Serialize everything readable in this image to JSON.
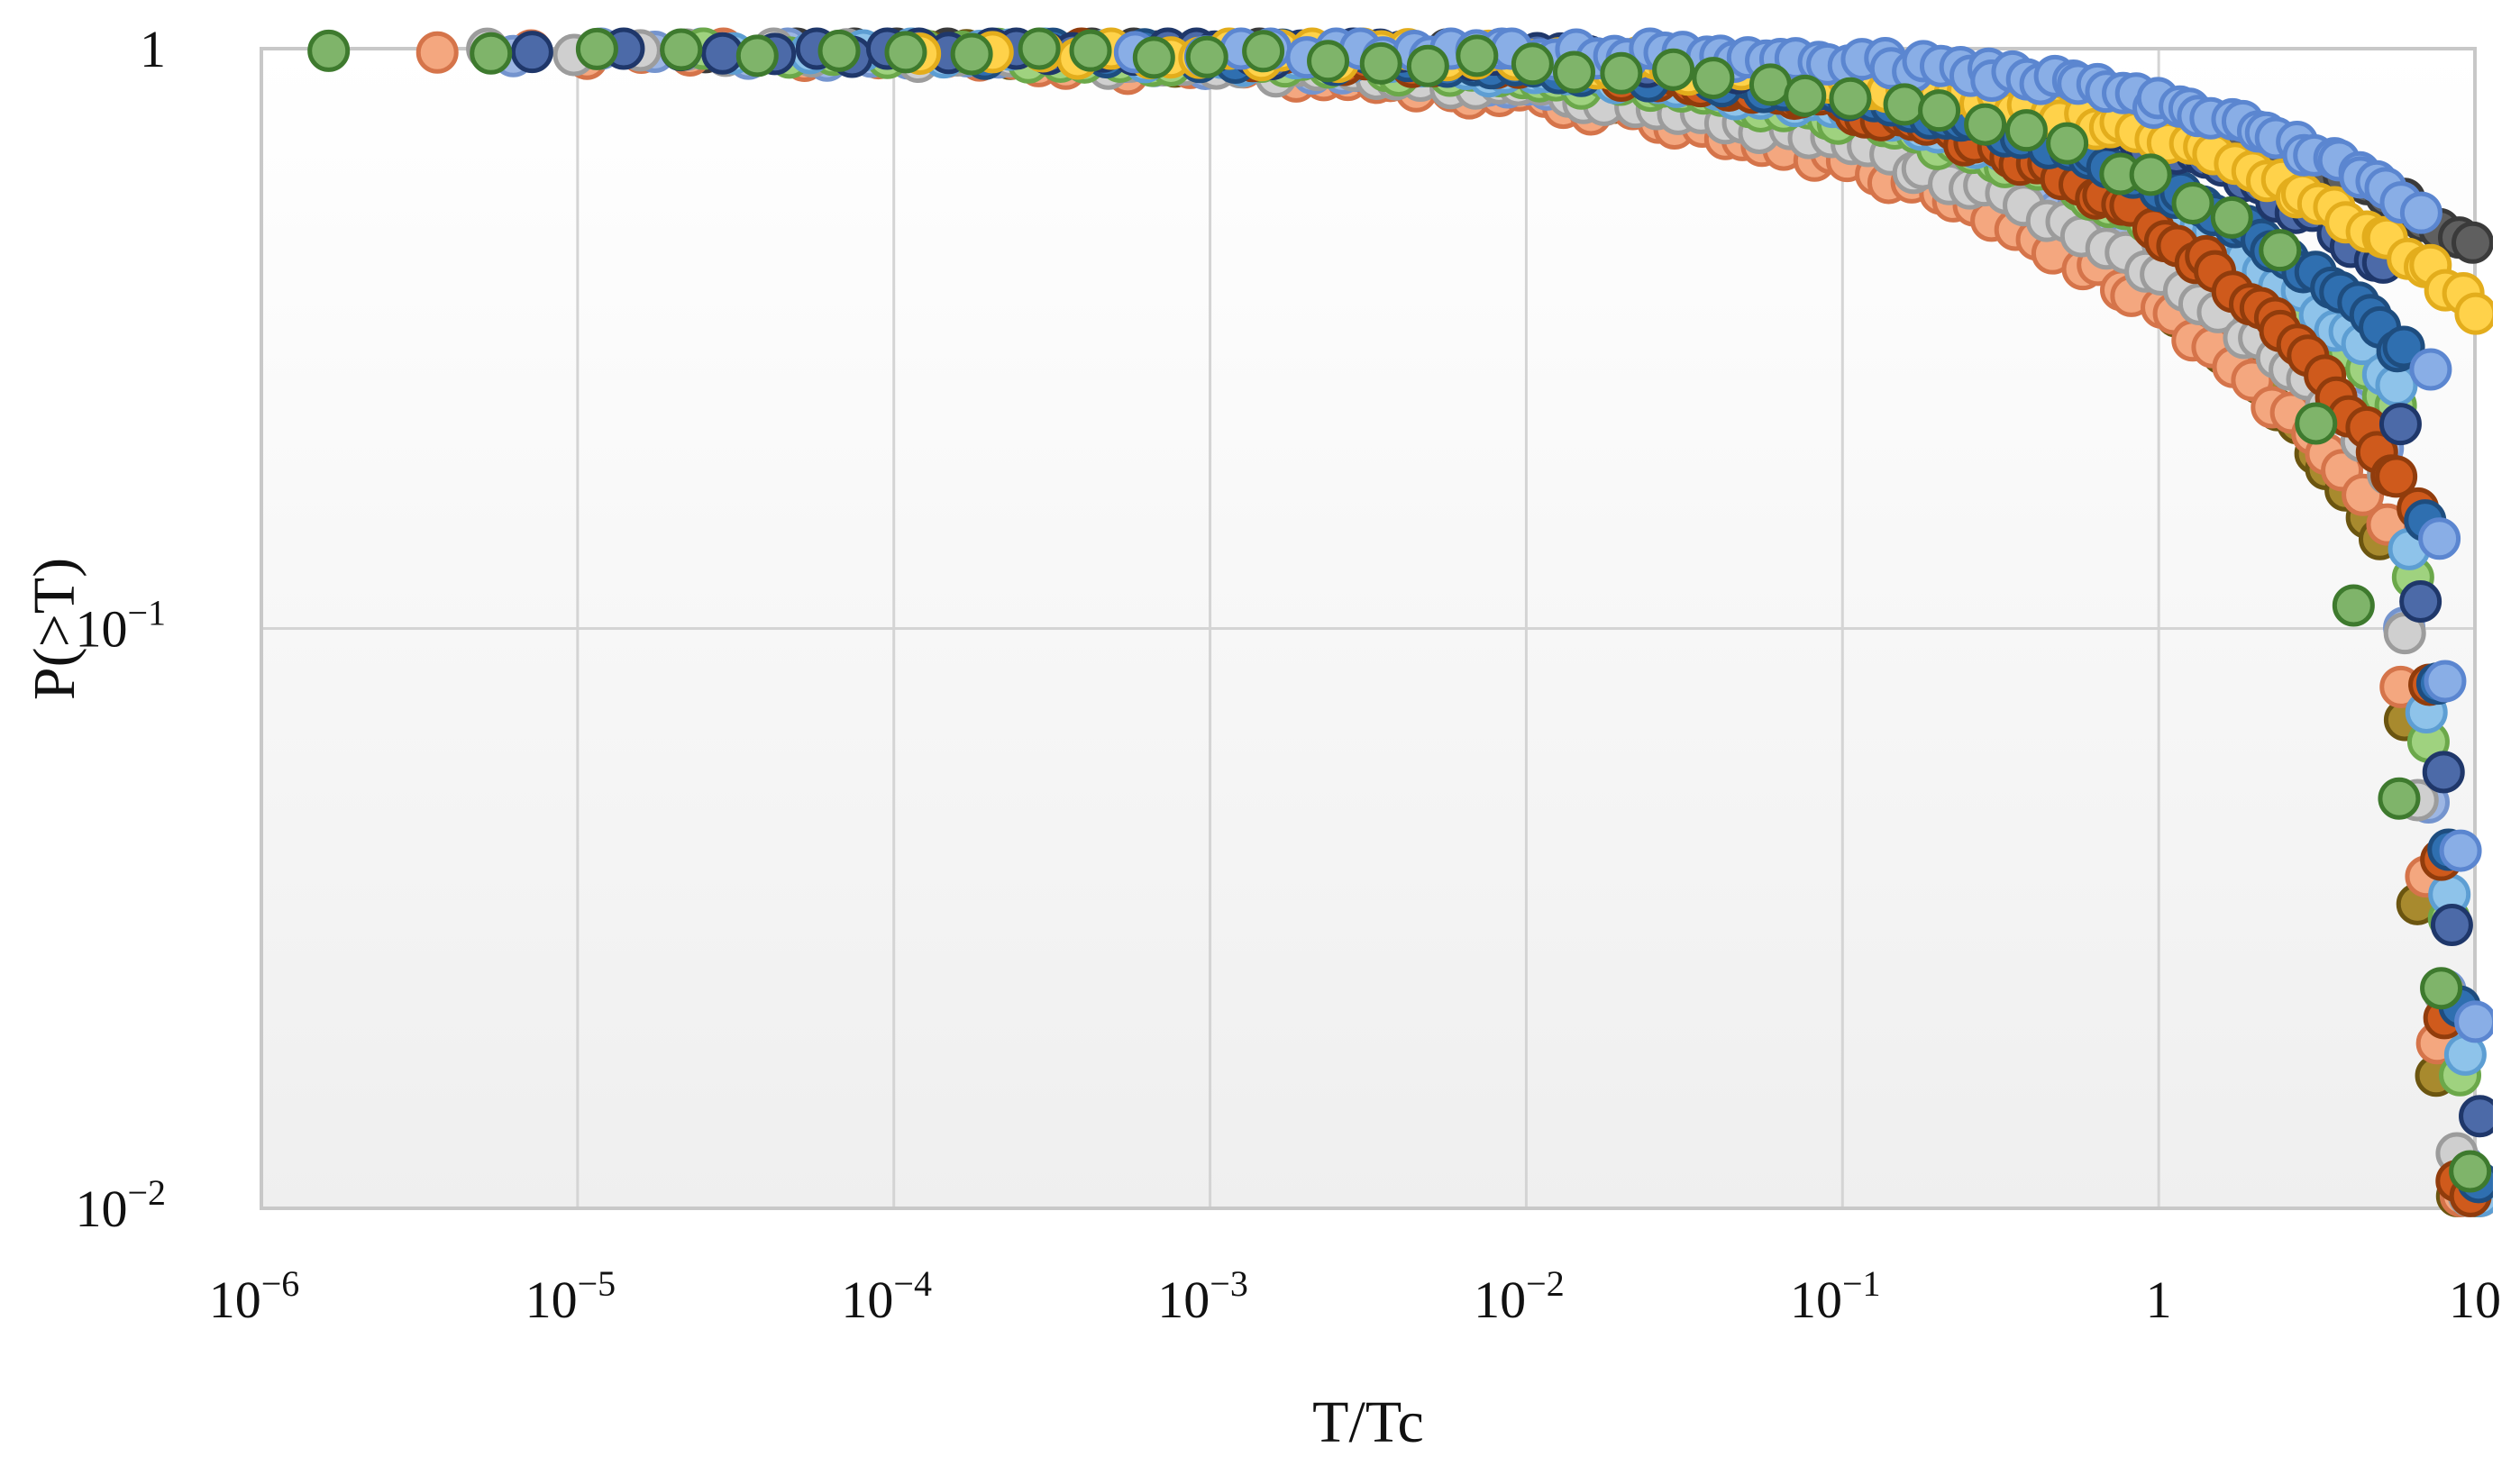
{
  "chart_data": {
    "type": "scatter",
    "title": "",
    "xlabel": "T/Tc",
    "ylabel": "P(>T)",
    "x_scale": "log",
    "y_scale": "log",
    "xlim": [
      1e-06,
      10
    ],
    "ylim": [
      0.01,
      1
    ],
    "grid": true,
    "legend": "none",
    "x_ticks": [
      {
        "value": 1e-06,
        "base": "10",
        "exp": "−6"
      },
      {
        "value": 1e-05,
        "base": "10",
        "exp": "−5"
      },
      {
        "value": 0.0001,
        "base": "10",
        "exp": "−4"
      },
      {
        "value": 0.001,
        "base": "10",
        "exp": "−3"
      },
      {
        "value": 0.01,
        "base": "10",
        "exp": "−2"
      },
      {
        "value": 0.1,
        "base": "10",
        "exp": "−1"
      },
      {
        "value": 1,
        "base": "1",
        "exp": ""
      },
      {
        "value": 10,
        "base": "10",
        "exp": ""
      }
    ],
    "y_ticks": [
      {
        "value": 1,
        "base": "1",
        "exp": ""
      },
      {
        "value": 0.1,
        "base": "10",
        "exp": "−1"
      },
      {
        "value": 0.01,
        "base": "10",
        "exp": "−2"
      }
    ],
    "series": [
      {
        "name": "dark-gray",
        "fill": "#5f5f5f",
        "stroke": "#3a3a3a",
        "gen": {
          "n": 70,
          "start": 2.5e-05,
          "lambda": 25,
          "beta": 0.46,
          "tail": false
        }
      },
      {
        "name": "olive",
        "fill": "#a88a2e",
        "stroke": "#6b5510",
        "gen": {
          "n": 70,
          "start": 3e-05,
          "lambda": 1.6,
          "beta": 0.42,
          "tail": true
        }
      },
      {
        "name": "orange-light",
        "fill": "#f4a77f",
        "stroke": "#d5744a",
        "gen": {
          "n": 80,
          "start": 3.5e-06,
          "lambda": 1.5,
          "beta": 0.36,
          "tail": true
        }
      },
      {
        "name": "blue-light",
        "fill": "#9db6e3",
        "stroke": "#7494ce",
        "gen": {
          "n": 80,
          "start": 6e-06,
          "lambda": 2.5,
          "beta": 0.4,
          "tail": true
        }
      },
      {
        "name": "gray-light",
        "fill": "#cfcfcf",
        "stroke": "#9c9c9c",
        "gen": {
          "n": 80,
          "start": 5e-06,
          "lambda": 2.2,
          "beta": 0.37,
          "tail": true
        }
      },
      {
        "name": "green",
        "fill": "#9fd27f",
        "stroke": "#6ba84a",
        "gen": {
          "n": 80,
          "start": 2.5e-05,
          "lambda": 3.8,
          "beta": 0.4,
          "tail": true
        }
      },
      {
        "name": "sky-blue",
        "fill": "#8ec3ea",
        "stroke": "#5d9ed3",
        "gen": {
          "n": 80,
          "start": 3e-05,
          "lambda": 4.5,
          "beta": 0.42,
          "tail": true
        }
      },
      {
        "name": "rust",
        "fill": "#cf5a1c",
        "stroke": "#913c0c",
        "gen": {
          "n": 80,
          "start": 0.0004,
          "lambda": 2.8,
          "beta": 0.5,
          "tail": true
        }
      },
      {
        "name": "steel-blue",
        "fill": "#2f6fb0",
        "stroke": "#1e4d7f",
        "gen": {
          "n": 80,
          "start": 0.0002,
          "lambda": 6,
          "beta": 0.45,
          "tail": true
        }
      },
      {
        "name": "navy",
        "fill": "#4c6aa8",
        "stroke": "#1f376a",
        "gen": {
          "n": 80,
          "start": 7e-06,
          "lambda": 10,
          "beta": 0.5,
          "tail": true
        }
      },
      {
        "name": "yellow",
        "fill": "#ffd24a",
        "stroke": "#e3ad1c",
        "gen": {
          "n": 80,
          "start": 0.00012,
          "lambda": 14,
          "beta": 0.46,
          "tail": false
        }
      },
      {
        "name": "cornflower",
        "fill": "#89aee6",
        "stroke": "#5b86d0",
        "gen": {
          "n": 80,
          "start": 0.0006,
          "lambda": 18,
          "beta": 0.6,
          "tail": true
        }
      },
      {
        "name": "green-dark-edge",
        "fill": "#7fb46a",
        "stroke": "#3e7a2e",
        "gen": {
          "n": 40,
          "start": 1.6e-06,
          "lambda": 6,
          "beta": 0.45,
          "tail": true
        }
      }
    ]
  }
}
